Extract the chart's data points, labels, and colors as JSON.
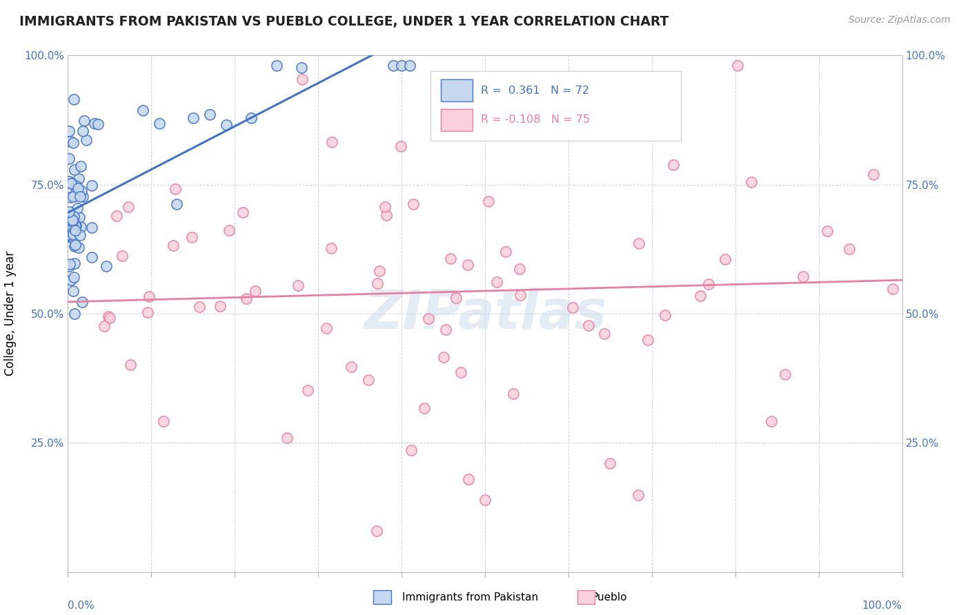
{
  "title": "IMMIGRANTS FROM PAKISTAN VS PUEBLO COLLEGE, UNDER 1 YEAR CORRELATION CHART",
  "source_text": "Source: ZipAtlas.com",
  "ylabel": "College, Under 1 year",
  "xmin": 0.0,
  "xmax": 1.0,
  "ymin": 0.0,
  "ymax": 1.0,
  "r_pakistan": 0.361,
  "n_pakistan": 72,
  "r_pueblo": -0.108,
  "n_pueblo": 75,
  "color_pakistan_fill": "#c5d8ee",
  "color_pakistan_edge": "#4472c4",
  "color_pueblo_fill": "#f9d0dc",
  "color_pueblo_edge": "#e87fa0",
  "color_pakistan_line": "#4472c4",
  "color_pueblo_line": "#e87fa0",
  "legend_color1": "#4472c4",
  "legend_color2": "#e87fa0",
  "watermark_color": "#c8d8ec",
  "grid_color": "#cccccc",
  "tick_label_color": "#4472c4",
  "title_color": "#222222",
  "source_color": "#999999"
}
